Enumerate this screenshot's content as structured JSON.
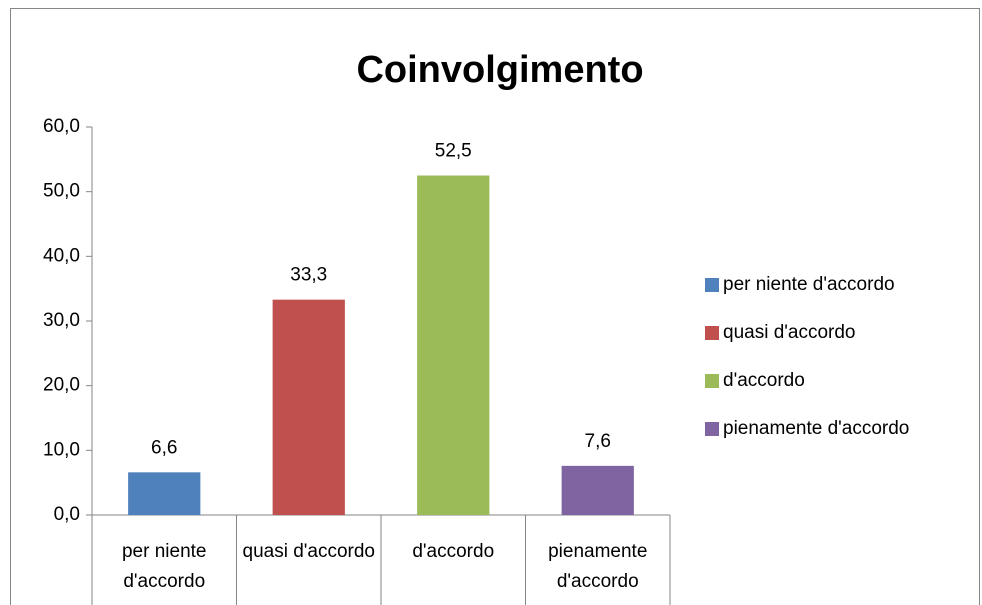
{
  "chart_data": {
    "type": "bar",
    "title": "Coinvolgimento",
    "categories": [
      "per niente d'accordo",
      "quasi d'accordo",
      "d'accordo",
      "pienamente d'accordo"
    ],
    "values": [
      6.6,
      33.3,
      52.5,
      7.6
    ],
    "value_labels": [
      "6,6",
      "33,3",
      "52,5",
      "7,6"
    ],
    "colors": [
      "#4f81bd",
      "#c0504d",
      "#9bbb59",
      "#8064a2"
    ],
    "ylim": [
      0,
      60
    ],
    "yticks": [
      {
        "value": 0,
        "label": "0,0"
      },
      {
        "value": 10,
        "label": "10,0"
      },
      {
        "value": 20,
        "label": "20,0"
      },
      {
        "value": 30,
        "label": "30,0"
      },
      {
        "value": 40,
        "label": "40,0"
      },
      {
        "value": 50,
        "label": "50,0"
      },
      {
        "value": 60,
        "label": "60,0"
      }
    ],
    "legend": "right"
  }
}
